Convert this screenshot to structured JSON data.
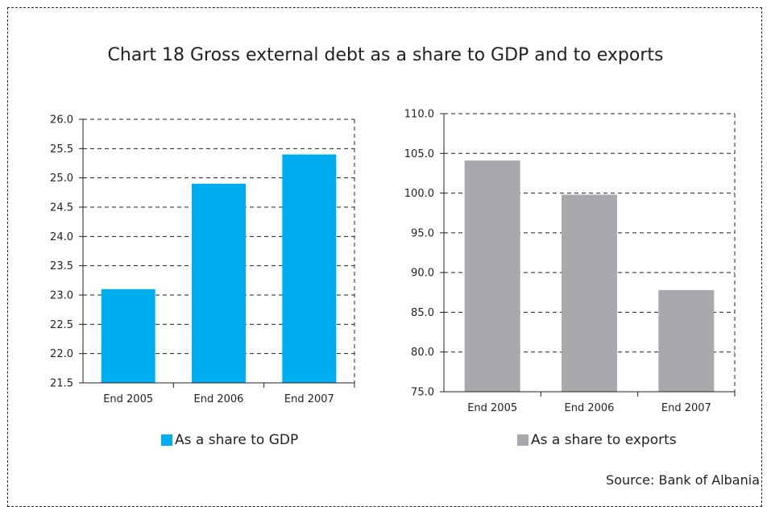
{
  "title": "Chart 18 Gross external debt as a share to GDP and to exports",
  "source": "Source: Bank of Albania",
  "chart_data": [
    {
      "type": "bar",
      "categories": [
        "End 2005",
        "End 2006",
        "End 2007"
      ],
      "series": [
        {
          "name": "As a share to GDP",
          "values": [
            23.1,
            24.9,
            25.4
          ],
          "color": "#00aeef"
        }
      ],
      "ylim": [
        21.5,
        26.0
      ],
      "yticks": [
        21.5,
        22.0,
        22.5,
        23.0,
        23.5,
        24.0,
        24.5,
        25.0,
        25.5,
        26.0
      ],
      "ytick_labels": [
        "21.5",
        "22.0",
        "22.5",
        "23.0",
        "23.5",
        "24.0",
        "24.5",
        "25.0",
        "25.5",
        "26.0"
      ],
      "grid": true,
      "legend_position": "bottom",
      "xlabel": "",
      "ylabel": ""
    },
    {
      "type": "bar",
      "categories": [
        "End 2005",
        "End 2006",
        "End 2007"
      ],
      "series": [
        {
          "name": "As a share to exports",
          "values": [
            104.1,
            99.8,
            87.8
          ],
          "color": "#a7a9ac"
        }
      ],
      "ylim": [
        75.0,
        110.0
      ],
      "yticks": [
        75.0,
        80.0,
        85.0,
        90.0,
        95.0,
        100.0,
        105.0,
        110.0
      ],
      "ytick_labels": [
        "75.0",
        "80.0",
        "85.0",
        "90.0",
        "95.0",
        "100.0",
        "105.0",
        "110.0"
      ],
      "grid": true,
      "legend_position": "bottom",
      "xlabel": "",
      "ylabel": ""
    }
  ]
}
